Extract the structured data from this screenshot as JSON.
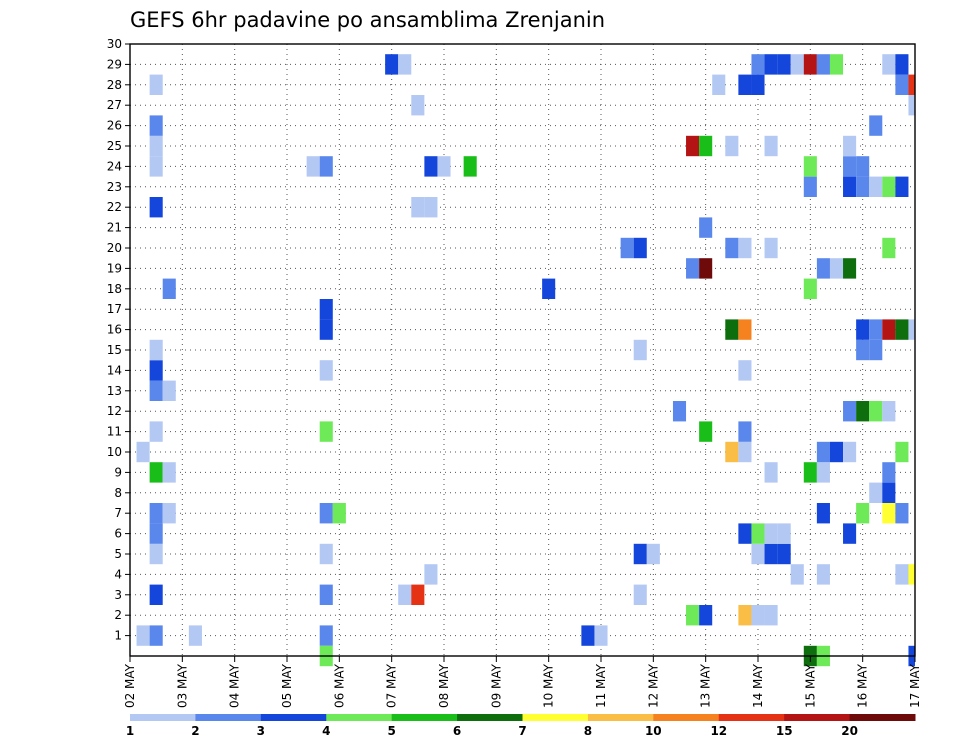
{
  "chart_data": {
    "type": "heatmap",
    "title": "GEFS 6hr padavine po ansamblima Zrenjanin",
    "x_ticks": [
      "02 MAY",
      "03 MAY",
      "04 MAY",
      "05 MAY",
      "06 MAY",
      "07 MAY",
      "08 MAY",
      "09 MAY",
      "10 MAY",
      "11 MAY",
      "12 MAY",
      "13 MAY",
      "14 MAY",
      "15 MAY",
      "16 MAY",
      "17 MAY"
    ],
    "y_ticks": [
      "1",
      "2",
      "3",
      "4",
      "5",
      "6",
      "7",
      "8",
      "9",
      "10",
      "11",
      "12",
      "13",
      "14",
      "15",
      "16",
      "17",
      "18",
      "19",
      "20",
      "21",
      "22",
      "23",
      "24",
      "25",
      "26",
      "27",
      "28",
      "29",
      "30"
    ],
    "xlim": [
      0,
      60
    ],
    "ylim": [
      0,
      30
    ],
    "grid": true,
    "legend": {
      "position": "bottom",
      "labels": [
        "1",
        "2",
        "3",
        "4",
        "5",
        "6",
        "7",
        "8",
        "10",
        "12",
        "15",
        "20"
      ],
      "colors": [
        "#b4c8f4",
        "#5a87ec",
        "#1446dc",
        "#6eea58",
        "#19be19",
        "#0e6e0e",
        "#ffff32",
        "#fabe46",
        "#f5821e",
        "#e63214",
        "#b41414",
        "#6e0a0a"
      ]
    },
    "cells": [
      {
        "x": 1,
        "y": 1,
        "v": 1
      },
      {
        "x": 2,
        "y": 1,
        "v": 2
      },
      {
        "x": 5,
        "y": 1,
        "v": 1
      },
      {
        "x": 15,
        "y": 1,
        "v": 2
      },
      {
        "x": 15,
        "y": 0,
        "v": 4
      },
      {
        "x": 35,
        "y": 1,
        "v": 3
      },
      {
        "x": 36,
        "y": 1,
        "v": 1
      },
      {
        "x": 2,
        "y": 3,
        "v": 3
      },
      {
        "x": 15,
        "y": 3,
        "v": 2
      },
      {
        "x": 21,
        "y": 3,
        "v": 1
      },
      {
        "x": 22,
        "y": 3,
        "v": 12
      },
      {
        "x": 39,
        "y": 3,
        "v": 1
      },
      {
        "x": 43,
        "y": 2,
        "v": 4
      },
      {
        "x": 44,
        "y": 2,
        "v": 3
      },
      {
        "x": 47,
        "y": 2,
        "v": 8
      },
      {
        "x": 48,
        "y": 2,
        "v": 1
      },
      {
        "x": 49,
        "y": 2,
        "v": 1
      },
      {
        "x": 23,
        "y": 4,
        "v": 1
      },
      {
        "x": 51,
        "y": 4,
        "v": 1
      },
      {
        "x": 53,
        "y": 4,
        "v": 1
      },
      {
        "x": 59,
        "y": 4,
        "v": 1
      },
      {
        "x": 60,
        "y": 4,
        "v": 7
      },
      {
        "x": 2,
        "y": 5,
        "v": 1
      },
      {
        "x": 15,
        "y": 5,
        "v": 1
      },
      {
        "x": 39,
        "y": 5,
        "v": 3
      },
      {
        "x": 40,
        "y": 5,
        "v": 1
      },
      {
        "x": 48,
        "y": 5,
        "v": 1
      },
      {
        "x": 49,
        "y": 5,
        "v": 3
      },
      {
        "x": 50,
        "y": 5,
        "v": 3
      },
      {
        "x": 2,
        "y": 6,
        "v": 2
      },
      {
        "x": 47,
        "y": 6,
        "v": 3
      },
      {
        "x": 48,
        "y": 6,
        "v": 4
      },
      {
        "x": 49,
        "y": 6,
        "v": 1
      },
      {
        "x": 50,
        "y": 6,
        "v": 1
      },
      {
        "x": 55,
        "y": 6,
        "v": 3
      },
      {
        "x": 2,
        "y": 7,
        "v": 2
      },
      {
        "x": 3,
        "y": 7,
        "v": 1
      },
      {
        "x": 15,
        "y": 7,
        "v": 2
      },
      {
        "x": 16,
        "y": 7,
        "v": 4
      },
      {
        "x": 53,
        "y": 7,
        "v": 3
      },
      {
        "x": 56,
        "y": 7,
        "v": 4
      },
      {
        "x": 58,
        "y": 7,
        "v": 7
      },
      {
        "x": 59,
        "y": 7,
        "v": 2
      },
      {
        "x": 57,
        "y": 8,
        "v": 1
      },
      {
        "x": 58,
        "y": 8,
        "v": 3
      },
      {
        "x": 2,
        "y": 9,
        "v": 5
      },
      {
        "x": 3,
        "y": 9,
        "v": 1
      },
      {
        "x": 49,
        "y": 9,
        "v": 1
      },
      {
        "x": 52,
        "y": 9,
        "v": 5
      },
      {
        "x": 53,
        "y": 9,
        "v": 1
      },
      {
        "x": 58,
        "y": 9,
        "v": 2
      },
      {
        "x": 1,
        "y": 10,
        "v": 1
      },
      {
        "x": 46,
        "y": 10,
        "v": 8
      },
      {
        "x": 47,
        "y": 10,
        "v": 1
      },
      {
        "x": 53,
        "y": 10,
        "v": 2
      },
      {
        "x": 54,
        "y": 10,
        "v": 3
      },
      {
        "x": 55,
        "y": 10,
        "v": 1
      },
      {
        "x": 59,
        "y": 10,
        "v": 4
      },
      {
        "x": 2,
        "y": 11,
        "v": 1
      },
      {
        "x": 15,
        "y": 11,
        "v": 4
      },
      {
        "x": 44,
        "y": 11,
        "v": 5
      },
      {
        "x": 47,
        "y": 11,
        "v": 2
      },
      {
        "x": 42,
        "y": 12,
        "v": 2
      },
      {
        "x": 55,
        "y": 12,
        "v": 2
      },
      {
        "x": 56,
        "y": 12,
        "v": 6
      },
      {
        "x": 57,
        "y": 12,
        "v": 4
      },
      {
        "x": 58,
        "y": 12,
        "v": 1
      },
      {
        "x": 2,
        "y": 13,
        "v": 2
      },
      {
        "x": 3,
        "y": 13,
        "v": 1
      },
      {
        "x": 2,
        "y": 14,
        "v": 3
      },
      {
        "x": 15,
        "y": 14,
        "v": 1
      },
      {
        "x": 47,
        "y": 14,
        "v": 1
      },
      {
        "x": 2,
        "y": 15,
        "v": 1
      },
      {
        "x": 39,
        "y": 15,
        "v": 1
      },
      {
        "x": 56,
        "y": 15,
        "v": 2
      },
      {
        "x": 57,
        "y": 15,
        "v": 2
      },
      {
        "x": 15,
        "y": 16,
        "v": 3
      },
      {
        "x": 46,
        "y": 16,
        "v": 6
      },
      {
        "x": 47,
        "y": 16,
        "v": 10
      },
      {
        "x": 56,
        "y": 16,
        "v": 3
      },
      {
        "x": 57,
        "y": 16,
        "v": 2
      },
      {
        "x": 58,
        "y": 16,
        "v": 15
      },
      {
        "x": 59,
        "y": 16,
        "v": 6
      },
      {
        "x": 60,
        "y": 16,
        "v": 1
      },
      {
        "x": 15,
        "y": 17,
        "v": 3
      },
      {
        "x": 3,
        "y": 18,
        "v": 2
      },
      {
        "x": 32,
        "y": 18,
        "v": 3
      },
      {
        "x": 52,
        "y": 18,
        "v": 4
      },
      {
        "x": 43,
        "y": 19,
        "v": 2
      },
      {
        "x": 44,
        "y": 19,
        "v": 20
      },
      {
        "x": 53,
        "y": 19,
        "v": 2
      },
      {
        "x": 54,
        "y": 19,
        "v": 1
      },
      {
        "x": 55,
        "y": 19,
        "v": 6
      },
      {
        "x": 38,
        "y": 20,
        "v": 2
      },
      {
        "x": 39,
        "y": 20,
        "v": 3
      },
      {
        "x": 46,
        "y": 20,
        "v": 2
      },
      {
        "x": 47,
        "y": 20,
        "v": 1
      },
      {
        "x": 49,
        "y": 20,
        "v": 1
      },
      {
        "x": 58,
        "y": 20,
        "v": 4
      },
      {
        "x": 44,
        "y": 21,
        "v": 2
      },
      {
        "x": 2,
        "y": 22,
        "v": 3
      },
      {
        "x": 22,
        "y": 22,
        "v": 1
      },
      {
        "x": 23,
        "y": 22,
        "v": 1
      },
      {
        "x": 52,
        "y": 23,
        "v": 2
      },
      {
        "x": 55,
        "y": 23,
        "v": 3
      },
      {
        "x": 56,
        "y": 23,
        "v": 2
      },
      {
        "x": 57,
        "y": 23,
        "v": 1
      },
      {
        "x": 58,
        "y": 23,
        "v": 4
      },
      {
        "x": 59,
        "y": 23,
        "v": 3
      },
      {
        "x": 2,
        "y": 24,
        "v": 1
      },
      {
        "x": 14,
        "y": 24,
        "v": 1
      },
      {
        "x": 15,
        "y": 24,
        "v": 2
      },
      {
        "x": 23,
        "y": 24,
        "v": 3
      },
      {
        "x": 24,
        "y": 24,
        "v": 1
      },
      {
        "x": 26,
        "y": 24,
        "v": 5
      },
      {
        "x": 52,
        "y": 24,
        "v": 4
      },
      {
        "x": 55,
        "y": 24,
        "v": 2
      },
      {
        "x": 56,
        "y": 24,
        "v": 2
      },
      {
        "x": 2,
        "y": 25,
        "v": 1
      },
      {
        "x": 43,
        "y": 25,
        "v": 15
      },
      {
        "x": 44,
        "y": 25,
        "v": 5
      },
      {
        "x": 46,
        "y": 25,
        "v": 1
      },
      {
        "x": 49,
        "y": 25,
        "v": 1
      },
      {
        "x": 55,
        "y": 25,
        "v": 1
      },
      {
        "x": 2,
        "y": 26,
        "v": 2
      },
      {
        "x": 57,
        "y": 26,
        "v": 2
      },
      {
        "x": 22,
        "y": 27,
        "v": 1
      },
      {
        "x": 60,
        "y": 27,
        "v": 1
      },
      {
        "x": 2,
        "y": 28,
        "v": 1
      },
      {
        "x": 45,
        "y": 28,
        "v": 1
      },
      {
        "x": 47,
        "y": 28,
        "v": 3
      },
      {
        "x": 48,
        "y": 28,
        "v": 3
      },
      {
        "x": 59,
        "y": 28,
        "v": 2
      },
      {
        "x": 60,
        "y": 28,
        "v": 12
      },
      {
        "x": 20,
        "y": 29,
        "v": 3
      },
      {
        "x": 21,
        "y": 29,
        "v": 1
      },
      {
        "x": 48,
        "y": 29,
        "v": 2
      },
      {
        "x": 49,
        "y": 29,
        "v": 3
      },
      {
        "x": 50,
        "y": 29,
        "v": 3
      },
      {
        "x": 51,
        "y": 29,
        "v": 1
      },
      {
        "x": 52,
        "y": 29,
        "v": 15
      },
      {
        "x": 53,
        "y": 29,
        "v": 2
      },
      {
        "x": 54,
        "y": 29,
        "v": 4
      },
      {
        "x": 58,
        "y": 29,
        "v": 1
      },
      {
        "x": 59,
        "y": 29,
        "v": 3
      },
      {
        "x": 52,
        "y": 0,
        "v": 6
      },
      {
        "x": 53,
        "y": 0,
        "v": 4
      },
      {
        "x": 60,
        "y": 0,
        "v": 3
      }
    ]
  }
}
